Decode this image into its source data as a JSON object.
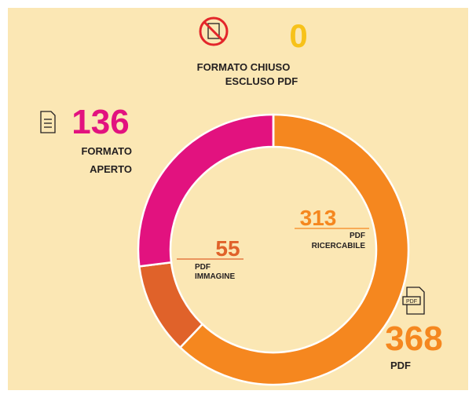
{
  "chart_data": {
    "type": "donut",
    "categories": [
      [
        "PDF",
        "RICERCABILE"
      ],
      [
        "PDF",
        "IMMAGINE"
      ],
      [
        "FORMATO",
        "APERTO"
      ],
      [
        "FORMATO CHIUSO",
        "ESCLUSO PDF"
      ]
    ],
    "values": [
      313,
      55,
      136,
      0
    ],
    "colors": [
      "#f5871f",
      "#e0622a",
      "#e2127f",
      "#f7c21a"
    ],
    "total": {
      "label": "PDF",
      "value": 368,
      "color": "#f5871f"
    }
  }
}
